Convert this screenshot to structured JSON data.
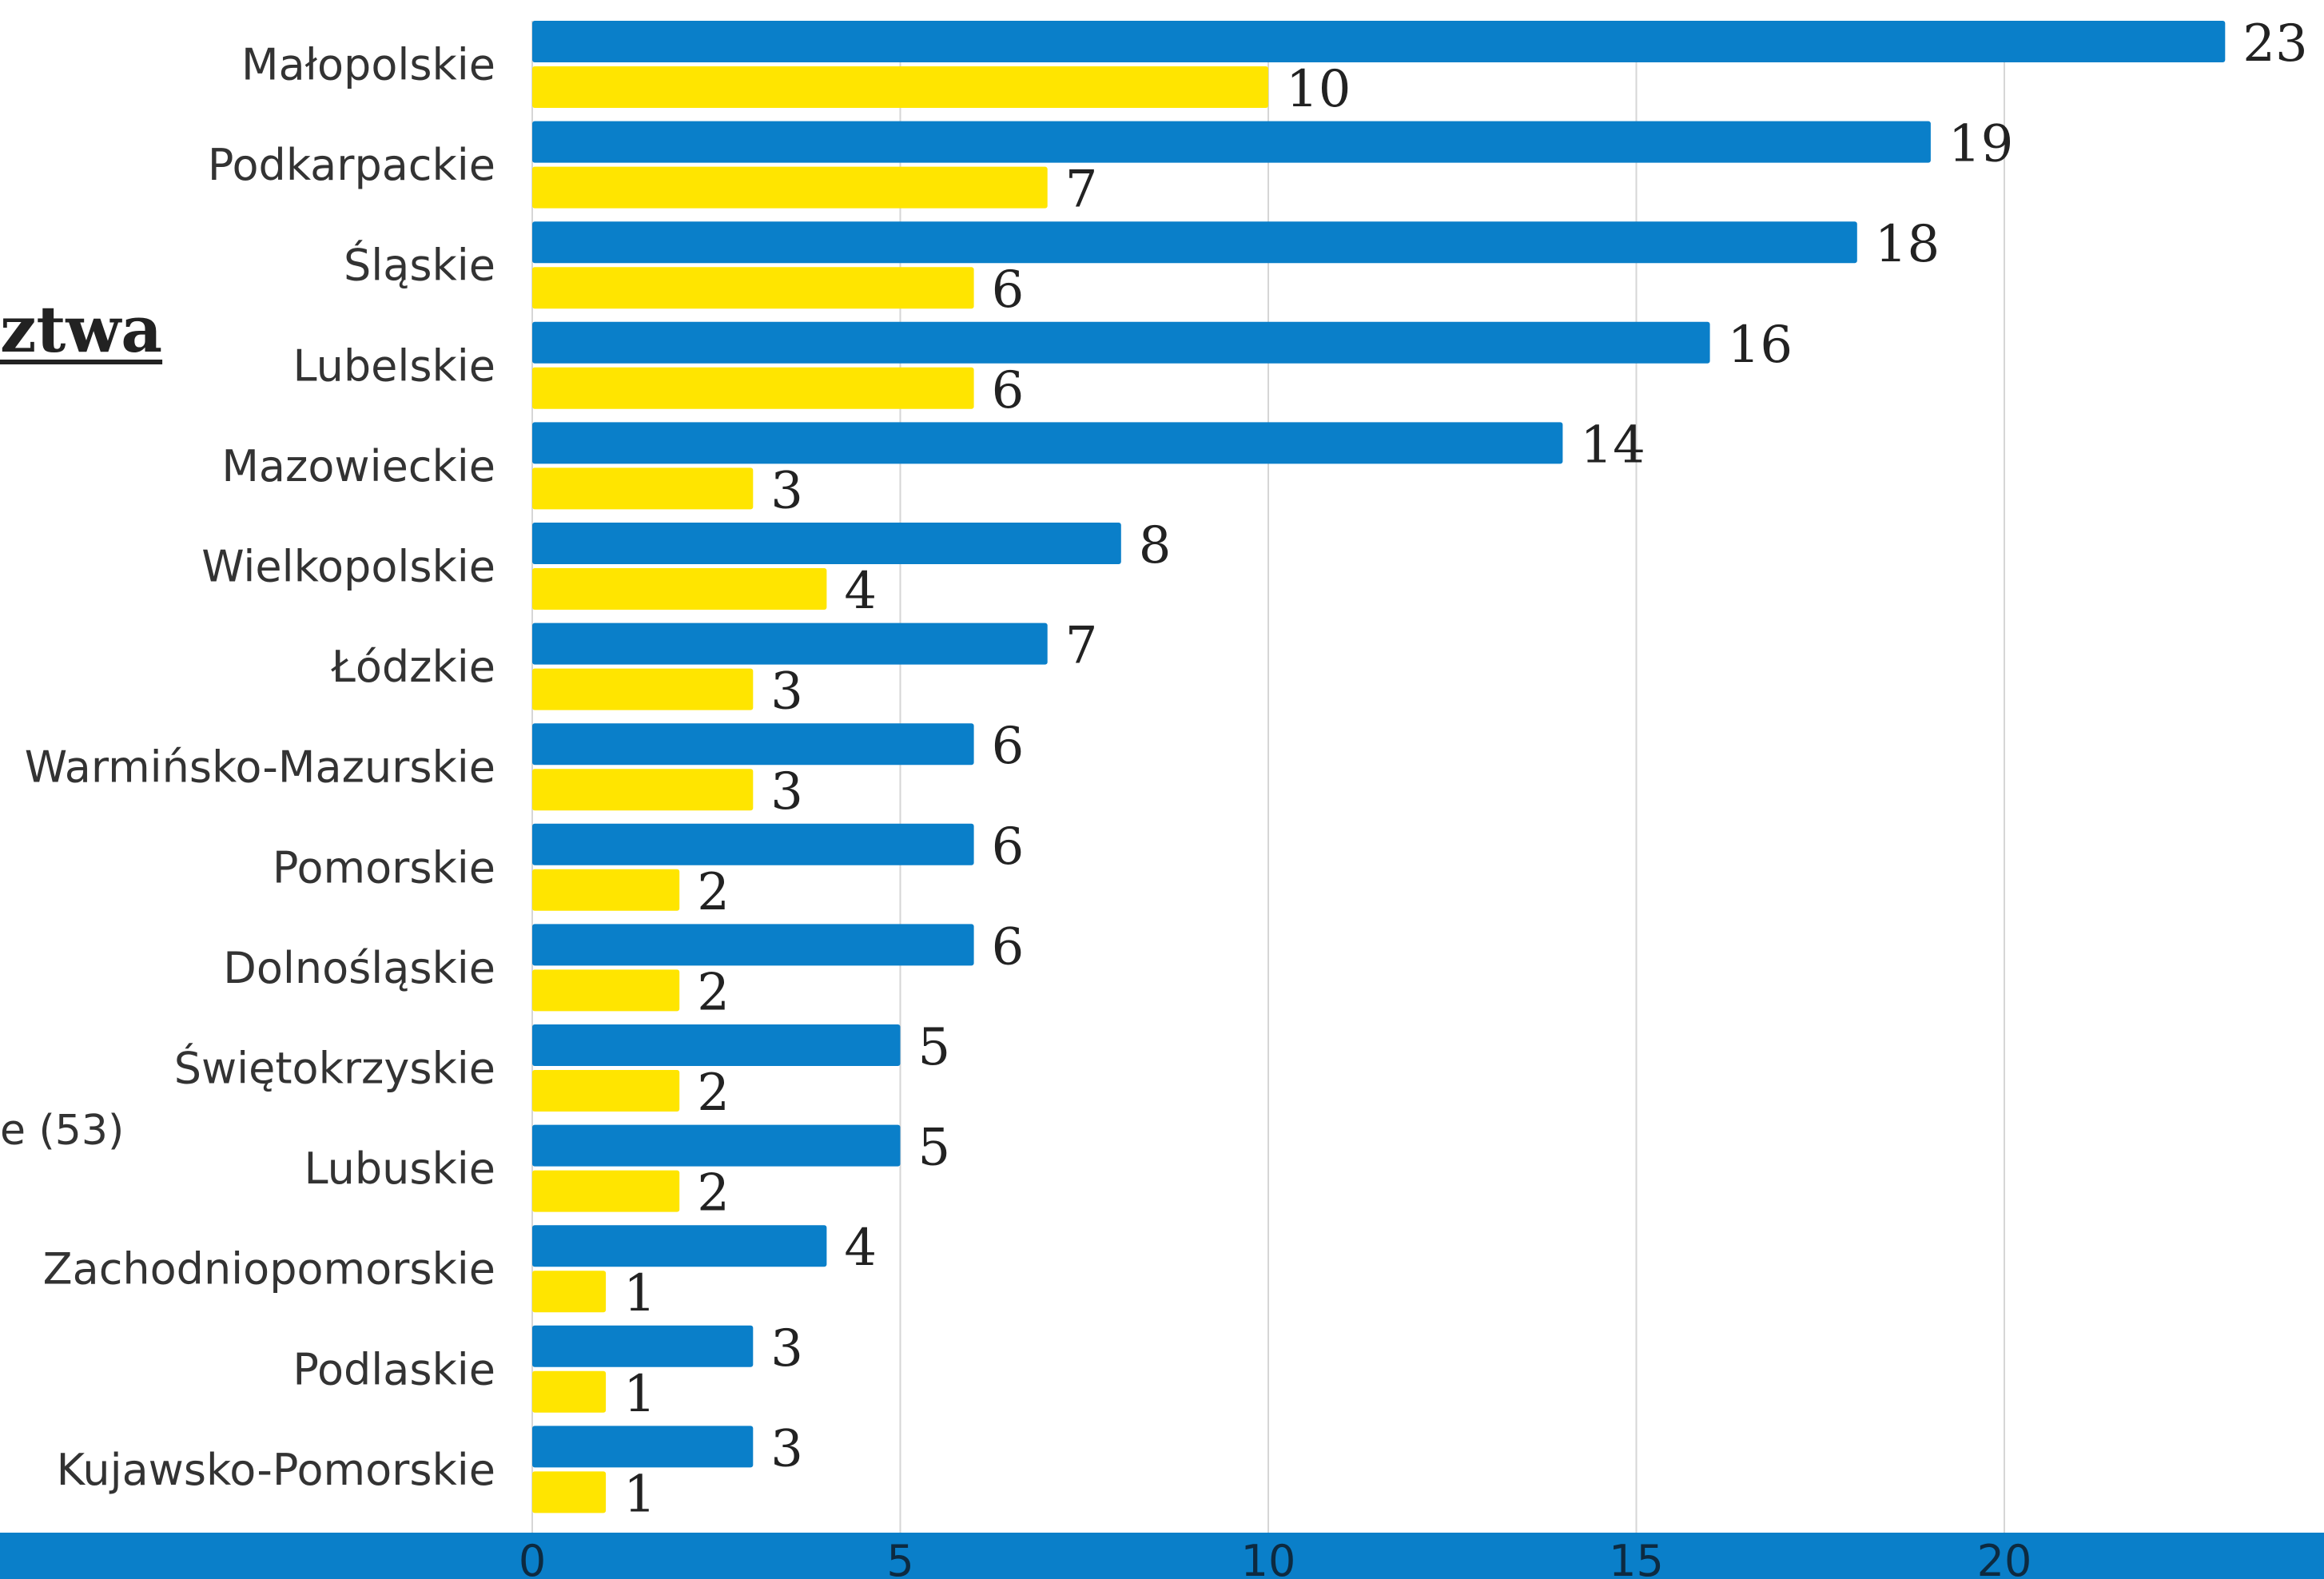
{
  "page": {
    "title_fragment": "ztwa",
    "legend_fragment": "e (53)"
  },
  "colors": {
    "series_primary": "#0a7fc9",
    "series_secondary": "#ffe500",
    "bottom_bar": "#0a7fc9"
  },
  "chart_data": {
    "type": "bar",
    "orientation": "horizontal",
    "categories": [
      "Małopolskie",
      "Podkarpackie",
      "Śląskie",
      "Lubelskie",
      "Mazowieckie",
      "Wielkopolskie",
      "Łódzkie",
      "Warmińsko-Mazurskie",
      "Pomorskie",
      "Dolnośląskie",
      "Świętokrzyskie",
      "Lubuskie",
      "Zachodniopomorskie",
      "Podlaskie",
      "Kujawsko-Pomorskie"
    ],
    "series": [
      {
        "color": "#0a7fc9",
        "values": [
          23,
          19,
          18,
          16,
          14,
          8,
          7,
          6,
          6,
          6,
          5,
          5,
          4,
          3,
          3
        ]
      },
      {
        "color": "#ffe500",
        "values": [
          10,
          7,
          6,
          6,
          3,
          4,
          3,
          3,
          2,
          2,
          2,
          2,
          1,
          1,
          1
        ]
      }
    ],
    "xticks": [
      0,
      5,
      10,
      15,
      20
    ],
    "xlim": [
      0,
      24
    ],
    "grid": true
  }
}
